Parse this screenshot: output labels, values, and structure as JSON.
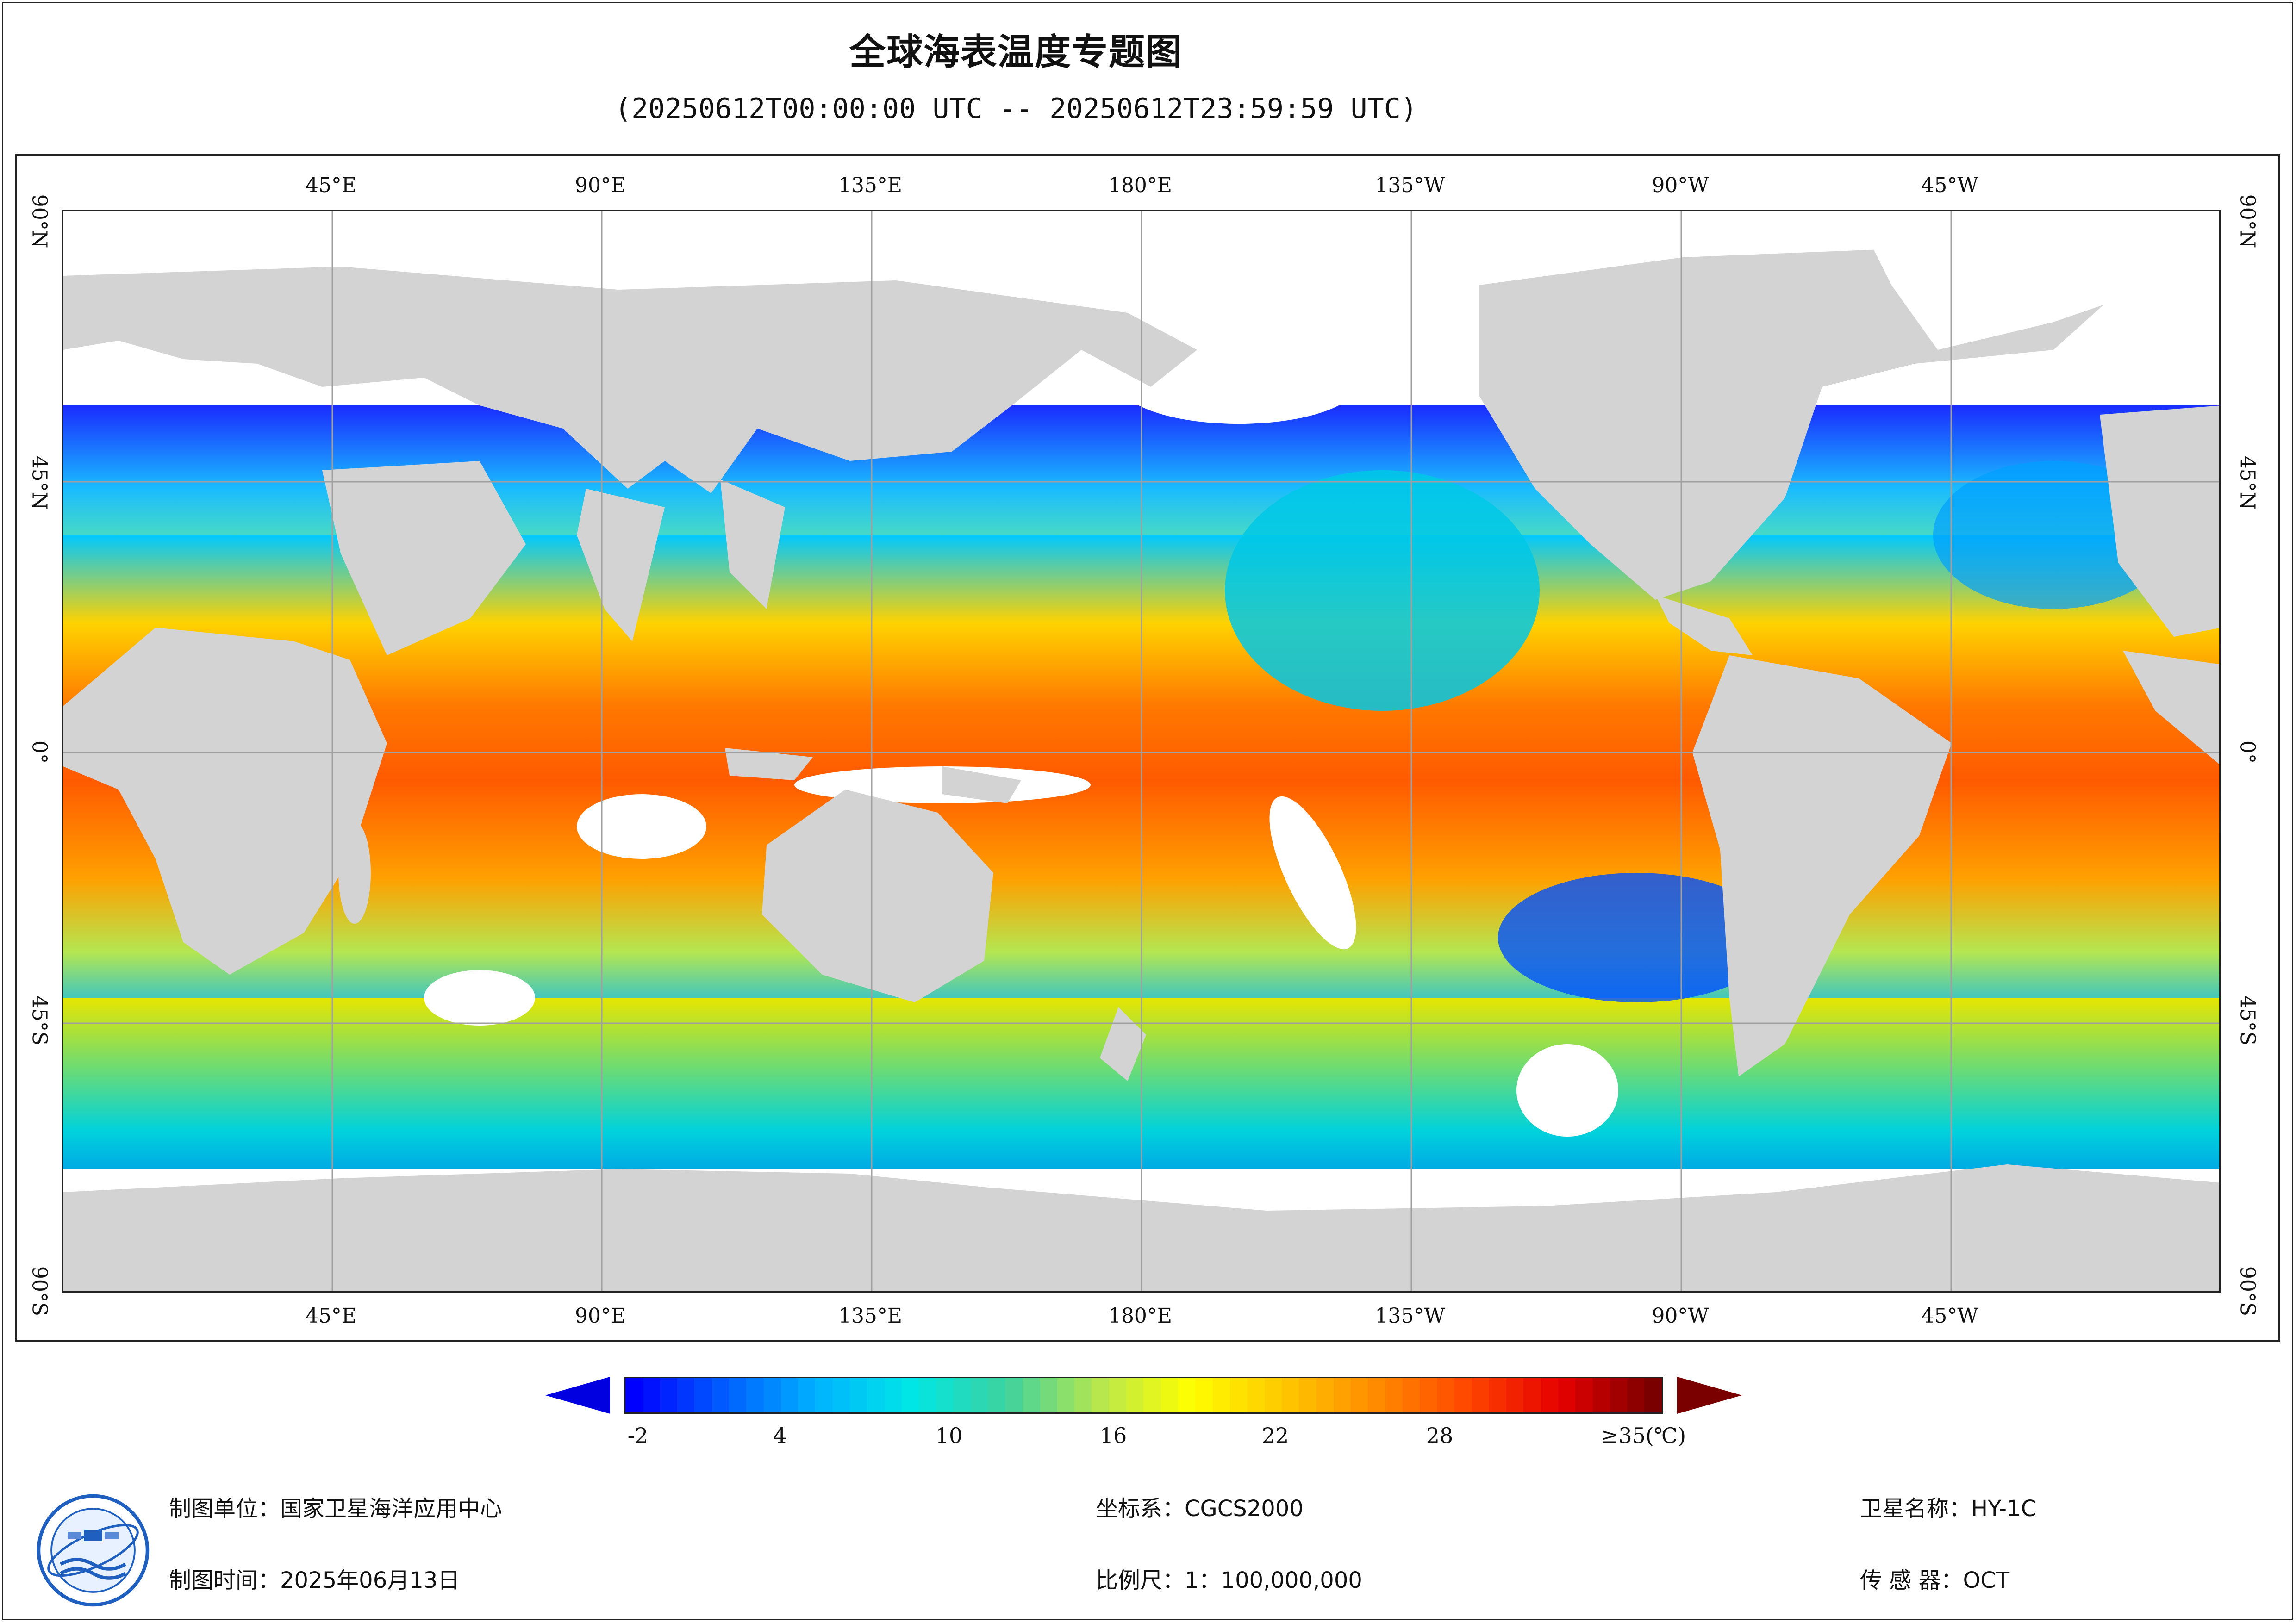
{
  "header": {
    "title": "全球海表温度专题图",
    "subtitle": "(20250612T00:00:00 UTC -- 20250612T23:59:59 UTC)"
  },
  "map": {
    "lon_ticks": [
      "45°E",
      "90°E",
      "135°E",
      "180°E",
      "135°W",
      "90°W",
      "45°W"
    ],
    "lat_ticks": [
      "90°N",
      "45°N",
      "0°",
      "45°S",
      "90°S"
    ],
    "colors": {
      "land": "#d3d3d3",
      "no_data": "#ffffff",
      "grid": "#a0a0a0"
    }
  },
  "legend": {
    "tick_labels": [
      "-2",
      "4",
      "10",
      "16",
      "22",
      "28",
      "≥35(℃)"
    ],
    "min_color": "#0000e0",
    "max_color": "#7a0000",
    "gradient": [
      "#0000ff",
      "#0060ff",
      "#00b4ff",
      "#00e6e6",
      "#3cd2a0",
      "#b4e650",
      "#ffff00",
      "#ffc800",
      "#ff8c00",
      "#ff4600",
      "#e60000",
      "#7a0000"
    ]
  },
  "footer": {
    "agency": "制图单位：国家卫星海洋应用中心",
    "date": "制图时间：2025年06月13日",
    "crs": "坐标系：CGCS2000",
    "scale": "比例尺：1：100,000,000",
    "satellite": "卫星名称：HY-1C",
    "sensor": "传 感 器：OCT",
    "logo_icon": "soa-satellite-ocean-logo-icon"
  }
}
